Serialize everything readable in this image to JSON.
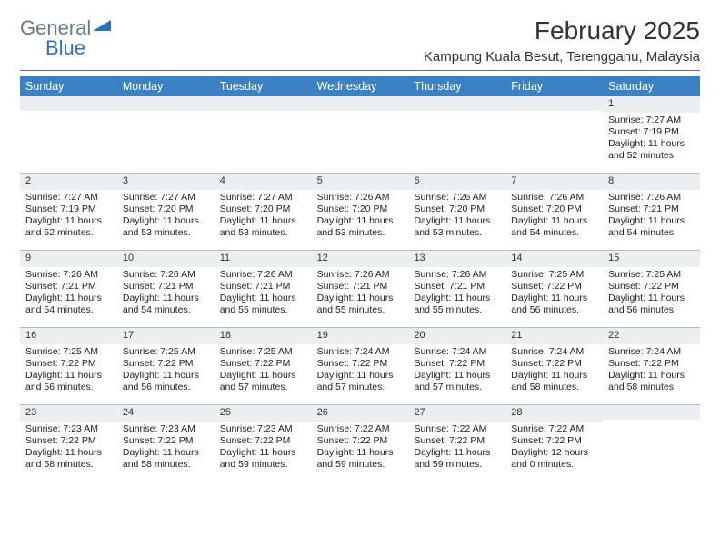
{
  "logo": {
    "text1": "General",
    "text2": "Blue"
  },
  "title": "February 2025",
  "location": "Kampung Kuala Besut, Terengganu, Malaysia",
  "colors": {
    "header_bg": "#3b82c4",
    "header_text": "#ffffff",
    "daynum_bg": "#eceff1",
    "grid_line": "#bbbbbb",
    "title_rule": "#666666",
    "logo_gray": "#6b7a87",
    "logo_blue": "#2d72b8",
    "body_text": "#222222",
    "background": "#ffffff"
  },
  "typography": {
    "month_title_pt": 28,
    "location_pt": 15,
    "day_header_pt": 12.5,
    "daynum_pt": 11,
    "cell_pt": 10.5,
    "logo_pt": 22
  },
  "day_names": [
    "Sunday",
    "Monday",
    "Tuesday",
    "Wednesday",
    "Thursday",
    "Friday",
    "Saturday"
  ],
  "labels": {
    "sunrise": "Sunrise:",
    "sunset": "Sunset:",
    "daylight": "Daylight:"
  },
  "weeks": [
    [
      {
        "blank": true
      },
      {
        "blank": true
      },
      {
        "blank": true
      },
      {
        "blank": true
      },
      {
        "blank": true
      },
      {
        "blank": true
      },
      {
        "day": 1,
        "sunrise": "7:27 AM",
        "sunset": "7:19 PM",
        "daylight": "11 hours and 52 minutes."
      }
    ],
    [
      {
        "day": 2,
        "sunrise": "7:27 AM",
        "sunset": "7:19 PM",
        "daylight": "11 hours and 52 minutes."
      },
      {
        "day": 3,
        "sunrise": "7:27 AM",
        "sunset": "7:20 PM",
        "daylight": "11 hours and 53 minutes."
      },
      {
        "day": 4,
        "sunrise": "7:27 AM",
        "sunset": "7:20 PM",
        "daylight": "11 hours and 53 minutes."
      },
      {
        "day": 5,
        "sunrise": "7:26 AM",
        "sunset": "7:20 PM",
        "daylight": "11 hours and 53 minutes."
      },
      {
        "day": 6,
        "sunrise": "7:26 AM",
        "sunset": "7:20 PM",
        "daylight": "11 hours and 53 minutes."
      },
      {
        "day": 7,
        "sunrise": "7:26 AM",
        "sunset": "7:20 PM",
        "daylight": "11 hours and 54 minutes."
      },
      {
        "day": 8,
        "sunrise": "7:26 AM",
        "sunset": "7:21 PM",
        "daylight": "11 hours and 54 minutes."
      }
    ],
    [
      {
        "day": 9,
        "sunrise": "7:26 AM",
        "sunset": "7:21 PM",
        "daylight": "11 hours and 54 minutes."
      },
      {
        "day": 10,
        "sunrise": "7:26 AM",
        "sunset": "7:21 PM",
        "daylight": "11 hours and 54 minutes."
      },
      {
        "day": 11,
        "sunrise": "7:26 AM",
        "sunset": "7:21 PM",
        "daylight": "11 hours and 55 minutes."
      },
      {
        "day": 12,
        "sunrise": "7:26 AM",
        "sunset": "7:21 PM",
        "daylight": "11 hours and 55 minutes."
      },
      {
        "day": 13,
        "sunrise": "7:26 AM",
        "sunset": "7:21 PM",
        "daylight": "11 hours and 55 minutes."
      },
      {
        "day": 14,
        "sunrise": "7:25 AM",
        "sunset": "7:22 PM",
        "daylight": "11 hours and 56 minutes."
      },
      {
        "day": 15,
        "sunrise": "7:25 AM",
        "sunset": "7:22 PM",
        "daylight": "11 hours and 56 minutes."
      }
    ],
    [
      {
        "day": 16,
        "sunrise": "7:25 AM",
        "sunset": "7:22 PM",
        "daylight": "11 hours and 56 minutes."
      },
      {
        "day": 17,
        "sunrise": "7:25 AM",
        "sunset": "7:22 PM",
        "daylight": "11 hours and 56 minutes."
      },
      {
        "day": 18,
        "sunrise": "7:25 AM",
        "sunset": "7:22 PM",
        "daylight": "11 hours and 57 minutes."
      },
      {
        "day": 19,
        "sunrise": "7:24 AM",
        "sunset": "7:22 PM",
        "daylight": "11 hours and 57 minutes."
      },
      {
        "day": 20,
        "sunrise": "7:24 AM",
        "sunset": "7:22 PM",
        "daylight": "11 hours and 57 minutes."
      },
      {
        "day": 21,
        "sunrise": "7:24 AM",
        "sunset": "7:22 PM",
        "daylight": "11 hours and 58 minutes."
      },
      {
        "day": 22,
        "sunrise": "7:24 AM",
        "sunset": "7:22 PM",
        "daylight": "11 hours and 58 minutes."
      }
    ],
    [
      {
        "day": 23,
        "sunrise": "7:23 AM",
        "sunset": "7:22 PM",
        "daylight": "11 hours and 58 minutes."
      },
      {
        "day": 24,
        "sunrise": "7:23 AM",
        "sunset": "7:22 PM",
        "daylight": "11 hours and 58 minutes."
      },
      {
        "day": 25,
        "sunrise": "7:23 AM",
        "sunset": "7:22 PM",
        "daylight": "11 hours and 59 minutes."
      },
      {
        "day": 26,
        "sunrise": "7:22 AM",
        "sunset": "7:22 PM",
        "daylight": "11 hours and 59 minutes."
      },
      {
        "day": 27,
        "sunrise": "7:22 AM",
        "sunset": "7:22 PM",
        "daylight": "11 hours and 59 minutes."
      },
      {
        "day": 28,
        "sunrise": "7:22 AM",
        "sunset": "7:22 PM",
        "daylight": "12 hours and 0 minutes."
      },
      {
        "blank": true
      }
    ]
  ]
}
